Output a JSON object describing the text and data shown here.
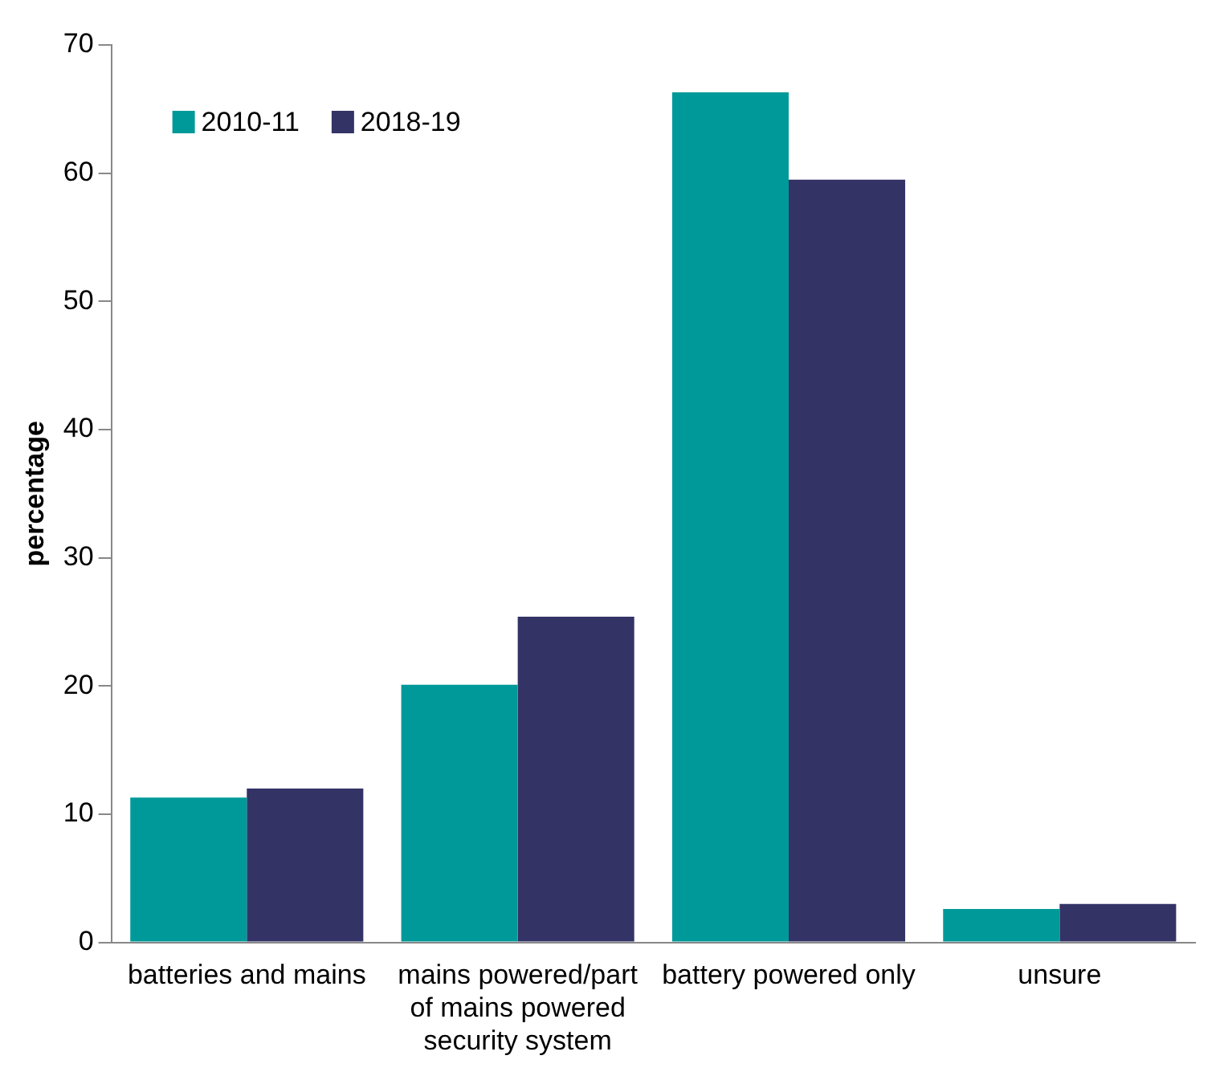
{
  "chart_data": {
    "type": "bar",
    "ylabel": "percentage",
    "categories": [
      "batteries and mains",
      "mains powered/part of mains powered security system",
      "battery powered only",
      "unsure"
    ],
    "series": [
      {
        "name": "2010-11",
        "color": "#009999",
        "values": [
          11.3,
          20.1,
          66.3,
          2.6
        ]
      },
      {
        "name": "2018-19",
        "color": "#333366",
        "values": [
          12.0,
          25.4,
          59.5,
          3.0
        ]
      }
    ],
    "ylim": [
      0,
      70
    ],
    "yticks": [
      0,
      10,
      20,
      30,
      40,
      50,
      60,
      70
    ],
    "grid": false,
    "legend": "top left"
  }
}
